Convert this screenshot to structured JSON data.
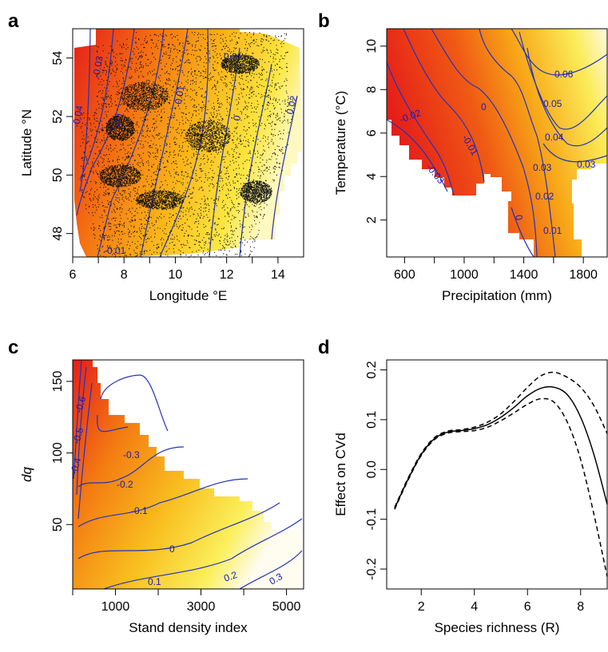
{
  "panels": {
    "a": {
      "letter": "a"
    },
    "b": {
      "letter": "b"
    },
    "c": {
      "letter": "c"
    },
    "d": {
      "letter": "d"
    }
  },
  "chart_data": [
    {
      "panel": "a",
      "type": "heatmap",
      "xlabel": "Longitude °E",
      "ylabel": "Latitude °N",
      "xlim": [
        6,
        15
      ],
      "ylim": [
        47.2,
        55
      ],
      "xticks": [
        "6",
        "8",
        "10",
        "12",
        "14"
      ],
      "yticks": [
        "48",
        "50",
        "52",
        "54"
      ],
      "contour_labels": [
        "-0.04",
        "-0.03",
        "-0.1",
        "-0.01",
        "0.01",
        "0.02",
        "-0.01",
        "0"
      ],
      "points_overlay": true,
      "color_low": "#e8201c",
      "color_high": "#ffffe6"
    },
    {
      "panel": "b",
      "type": "heatmap",
      "xlabel": "Precipitation (mm)",
      "ylabel": "Temperature (°C)",
      "xlim": [
        480,
        1960
      ],
      "ylim": [
        0.3,
        10.8
      ],
      "xticks": [
        "600",
        "1000",
        "1400",
        "1800"
      ],
      "yticks": [
        "2",
        "4",
        "6",
        "8",
        "10"
      ],
      "contour_labels": [
        "-0.02",
        "-0.03",
        "-0.01",
        "0",
        "0.06",
        "0.05",
        "0.04",
        "0.03",
        "0.03",
        "0.02",
        "0.01",
        "0"
      ],
      "color_low": "#e8201c",
      "color_high": "#ffffe6"
    },
    {
      "panel": "c",
      "type": "heatmap",
      "xlabel": "Stand density index",
      "ylabel": "dq",
      "xlim": [
        0,
        5400
      ],
      "ylim": [
        5,
        165
      ],
      "xticks": [
        "1000",
        "3000",
        "5000"
      ],
      "yticks": [
        "50",
        "100",
        "150"
      ],
      "contour_labels": [
        "-0.6",
        "-0.5",
        "-0.4",
        "-0.3",
        "-0.2",
        "-0.1",
        "0",
        "0.1",
        "0.2",
        "0.3"
      ],
      "color_low": "#e8201c",
      "color_high": "#ffffe6"
    },
    {
      "panel": "d",
      "type": "line",
      "xlabel": "Species richness (R)",
      "ylabel": "Effect on CVd",
      "xlim": [
        0.7,
        9
      ],
      "ylim": [
        -0.24,
        0.22
      ],
      "xticks": [
        "2",
        "4",
        "6",
        "8"
      ],
      "yticks": [
        "-0.2",
        "-0.1",
        "0.0",
        "0.1",
        "0.2"
      ],
      "series": [
        {
          "style": "solid",
          "x": [
            1,
            1.5,
            2,
            2.5,
            3,
            3.5,
            4,
            4.5,
            5,
            5.5,
            6,
            6.5,
            7,
            7.5,
            8,
            8.5,
            9
          ],
          "values": [
            -0.078,
            -0.02,
            0.03,
            0.062,
            0.075,
            0.078,
            0.082,
            0.09,
            0.105,
            0.125,
            0.148,
            0.163,
            0.165,
            0.15,
            0.105,
            0.03,
            -0.07
          ]
        },
        {
          "style": "dashed",
          "x": [
            1,
            1.5,
            2,
            2.5,
            3,
            3.5,
            4,
            4.5,
            5,
            5.5,
            6,
            6.5,
            7,
            7.5,
            8,
            8.5,
            9
          ],
          "values": [
            -0.076,
            -0.018,
            0.032,
            0.064,
            0.077,
            0.08,
            0.085,
            0.095,
            0.112,
            0.137,
            0.165,
            0.188,
            0.195,
            0.185,
            0.165,
            0.128,
            0.072
          ]
        },
        {
          "style": "dashed",
          "x": [
            1,
            1.5,
            2,
            2.5,
            3,
            3.5,
            4,
            4.5,
            5,
            5.5,
            6,
            6.5,
            7,
            7.5,
            8,
            8.5,
            9
          ],
          "values": [
            -0.08,
            -0.022,
            0.028,
            0.06,
            0.073,
            0.076,
            0.078,
            0.085,
            0.098,
            0.114,
            0.131,
            0.142,
            0.135,
            0.095,
            0.02,
            -0.09,
            -0.215
          ]
        }
      ]
    }
  ]
}
